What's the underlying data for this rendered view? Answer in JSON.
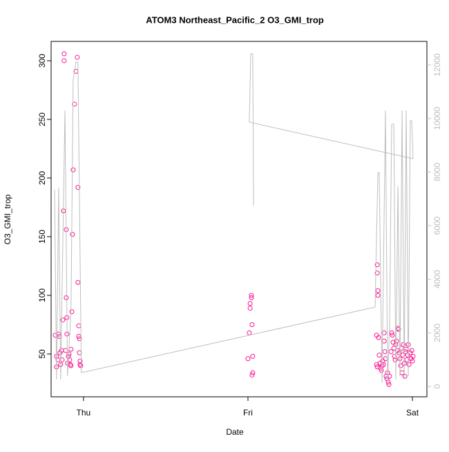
{
  "chart_data": {
    "type": "scatter",
    "title": "ATOM3 Northeast_Pacific_2 O3_GMI_trop",
    "xlabel": "Date",
    "ylabel": "O3_GMI_trop",
    "xlim": [
      -0.197,
      2.088
    ],
    "xticks": [
      {
        "value": 0,
        "label": "Thu"
      },
      {
        "value": 1,
        "label": "Fri"
      },
      {
        "value": 2,
        "label": "Sat"
      }
    ],
    "ylim": [
      13.5,
      316.5
    ],
    "yticks": [
      50,
      100,
      150,
      200,
      250,
      300
    ],
    "y2lim": [
      -386,
      12876
    ],
    "y2ticks": [
      0,
      2000,
      4000,
      6000,
      8000,
      10000,
      12000
    ],
    "y2color": "#bebebe",
    "series": [
      {
        "type": "scatter",
        "color": "#ff1493",
        "x": [
          -0.172,
          -0.164,
          -0.164,
          -0.155,
          -0.151,
          -0.147,
          -0.143,
          -0.139,
          -0.134,
          -0.13,
          -0.126,
          -0.122,
          -0.118,
          -0.118,
          -0.109,
          -0.105,
          -0.105,
          -0.101,
          -0.101,
          -0.097,
          -0.092,
          -0.088,
          -0.084,
          -0.08,
          -0.076,
          -0.076,
          -0.071,
          -0.067,
          -0.063,
          -0.055,
          -0.046,
          -0.038,
          -0.034,
          -0.034,
          -0.029,
          -0.029,
          -0.025,
          -0.025,
          -0.021,
          -0.021,
          -0.017,
          1.0,
          1.008,
          1.013,
          1.013,
          1.021,
          1.021,
          1.025,
          1.029,
          1.029,
          1.025,
          1.786,
          1.786,
          1.79,
          1.79,
          1.782,
          1.794,
          1.782,
          1.786,
          1.798,
          1.803,
          1.807,
          1.811,
          1.815,
          1.819,
          1.824,
          1.828,
          1.828,
          1.832,
          1.836,
          1.84,
          1.845,
          1.849,
          1.853,
          1.857,
          1.861,
          1.87,
          1.874,
          1.878,
          1.882,
          1.887,
          1.891,
          1.895,
          1.899,
          1.903,
          1.908,
          1.912,
          1.916,
          1.92,
          1.924,
          1.929,
          1.933,
          1.937,
          1.941,
          1.945,
          1.95,
          1.954,
          1.958,
          1.962,
          1.966,
          1.971,
          1.975,
          1.979,
          1.987,
          1.992,
          1.996,
          2.0,
          2.004
        ],
        "values": [
          66,
          48,
          39,
          45,
          67,
          65,
          51,
          41,
          53,
          45,
          79,
          172,
          306,
          300,
          53,
          156,
          98,
          81,
          67,
          42,
          48,
          50,
          45,
          41,
          54,
          40,
          86,
          152,
          207,
          263,
          291,
          303,
          192,
          111,
          74,
          65,
          63,
          51,
          44,
          41,
          40,
          46,
          68,
          89,
          93,
          98,
          100,
          75,
          48,
          34,
          32,
          126,
          119,
          104,
          100,
          66,
          64,
          41,
          39,
          49,
          42,
          38,
          36,
          40,
          44,
          41,
          68,
          61,
          52,
          46,
          31,
          29,
          34,
          26,
          24,
          31,
          52,
          68,
          66,
          60,
          55,
          48,
          45,
          58,
          61,
          53,
          72,
          71,
          51,
          46,
          40,
          55,
          34,
          49,
          58,
          42,
          31,
          52,
          54,
          45,
          49,
          58,
          41,
          51,
          46,
          53,
          44,
          48
        ]
      },
      {
        "type": "line",
        "axis": "y2",
        "color": "#bebebe",
        "x": [
          -0.176,
          -0.164,
          -0.151,
          -0.139,
          -0.113,
          -0.097,
          -0.076,
          -0.063,
          -0.046,
          -0.034,
          -0.013,
          1.773,
          1.79,
          1.798,
          1.815,
          1.836,
          1.849,
          1.861,
          1.874,
          1.887,
          1.899,
          1.912,
          1.924,
          1.937,
          1.95,
          1.962,
          1.975,
          1.987,
          1.996,
          2.004,
          1.008,
          1.017,
          1.029,
          1.034
        ],
        "values": [
          7340,
          258,
          7417,
          258,
          10301,
          386,
          2833,
          11460,
          12104,
          12104,
          515,
          2962,
          7983,
          7983,
          129,
          10301,
          129,
          2318,
          9786,
          9786,
          258,
          7468,
          386,
          10301,
          258,
          10301,
          386,
          9915,
          9915,
          8498,
          9863,
          12413,
          12413,
          6747
        ]
      }
    ]
  }
}
